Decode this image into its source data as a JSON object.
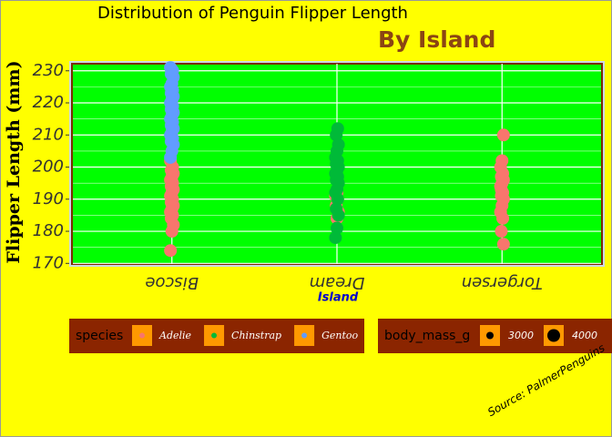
{
  "chart_data": {
    "type": "strip",
    "title": "Distribution of Penguin Flipper Length",
    "subtitle": "By Island",
    "x_label": "Island",
    "y_label": "Flipper Length (mm)",
    "caption": "Source: PalmerPenguins",
    "categories": [
      "Biscoe",
      "Dream",
      "Torgersen"
    ],
    "ylim": [
      169.8,
      232.2
    ],
    "yticks": [
      170,
      180,
      190,
      200,
      210,
      220,
      230
    ],
    "grid": true,
    "legend_title": "species",
    "series": [
      {
        "name": "Adelie",
        "color": "#F8766D",
        "x": [
          "Biscoe",
          "Biscoe",
          "Biscoe",
          "Biscoe",
          "Biscoe",
          "Biscoe",
          "Biscoe",
          "Biscoe",
          "Biscoe",
          "Biscoe",
          "Biscoe",
          "Biscoe",
          "Biscoe",
          "Biscoe",
          "Biscoe",
          "Biscoe",
          "Biscoe",
          "Biscoe",
          "Biscoe",
          "Biscoe",
          "Biscoe",
          "Dream",
          "Dream",
          "Dream",
          "Dream",
          "Dream",
          "Dream",
          "Torgersen",
          "Torgersen",
          "Torgersen",
          "Torgersen",
          "Torgersen",
          "Torgersen",
          "Torgersen",
          "Torgersen",
          "Torgersen",
          "Torgersen",
          "Torgersen",
          "Torgersen",
          "Torgersen",
          "Torgersen",
          "Torgersen",
          "Torgersen",
          "Torgersen"
        ],
        "values": [
          174,
          180,
          182,
          184,
          185,
          186,
          187,
          188,
          189,
          190,
          191,
          192,
          193,
          194,
          195,
          196,
          197,
          198,
          199,
          200,
          202,
          184,
          186,
          188,
          190,
          191,
          192,
          176,
          180,
          184,
          186,
          188,
          190,
          191,
          192,
          194,
          195,
          196,
          197,
          198,
          200,
          202,
          210,
          193
        ]
      },
      {
        "name": "Chinstrap",
        "color": "#00BA38",
        "x": [
          "Dream",
          "Dream",
          "Dream",
          "Dream",
          "Dream",
          "Dream",
          "Dream",
          "Dream",
          "Dream",
          "Dream",
          "Dream",
          "Dream",
          "Dream",
          "Dream",
          "Dream",
          "Dream",
          "Dream",
          "Dream",
          "Dream",
          "Dream"
        ],
        "values": [
          178,
          181,
          185,
          187,
          190,
          192,
          193,
          195,
          196,
          197,
          198,
          199,
          200,
          201,
          202,
          203,
          205,
          207,
          210,
          212
        ]
      },
      {
        "name": "Gentoo",
        "color": "#619CFF",
        "x": [
          "Biscoe",
          "Biscoe",
          "Biscoe",
          "Biscoe",
          "Biscoe",
          "Biscoe",
          "Biscoe",
          "Biscoe",
          "Biscoe",
          "Biscoe",
          "Biscoe",
          "Biscoe",
          "Biscoe",
          "Biscoe",
          "Biscoe",
          "Biscoe",
          "Biscoe",
          "Biscoe",
          "Biscoe",
          "Biscoe",
          "Biscoe",
          "Biscoe",
          "Biscoe",
          "Biscoe",
          "Biscoe",
          "Biscoe"
        ],
        "values": [
          203,
          205,
          207,
          208,
          209,
          210,
          211,
          212,
          213,
          214,
          215,
          216,
          217,
          218,
          219,
          220,
          221,
          222,
          223,
          224,
          225,
          226,
          228,
          229,
          230,
          231
        ]
      }
    ],
    "size_legend": {
      "title": "body_mass_g",
      "values": [
        3000,
        4000
      ]
    }
  }
}
